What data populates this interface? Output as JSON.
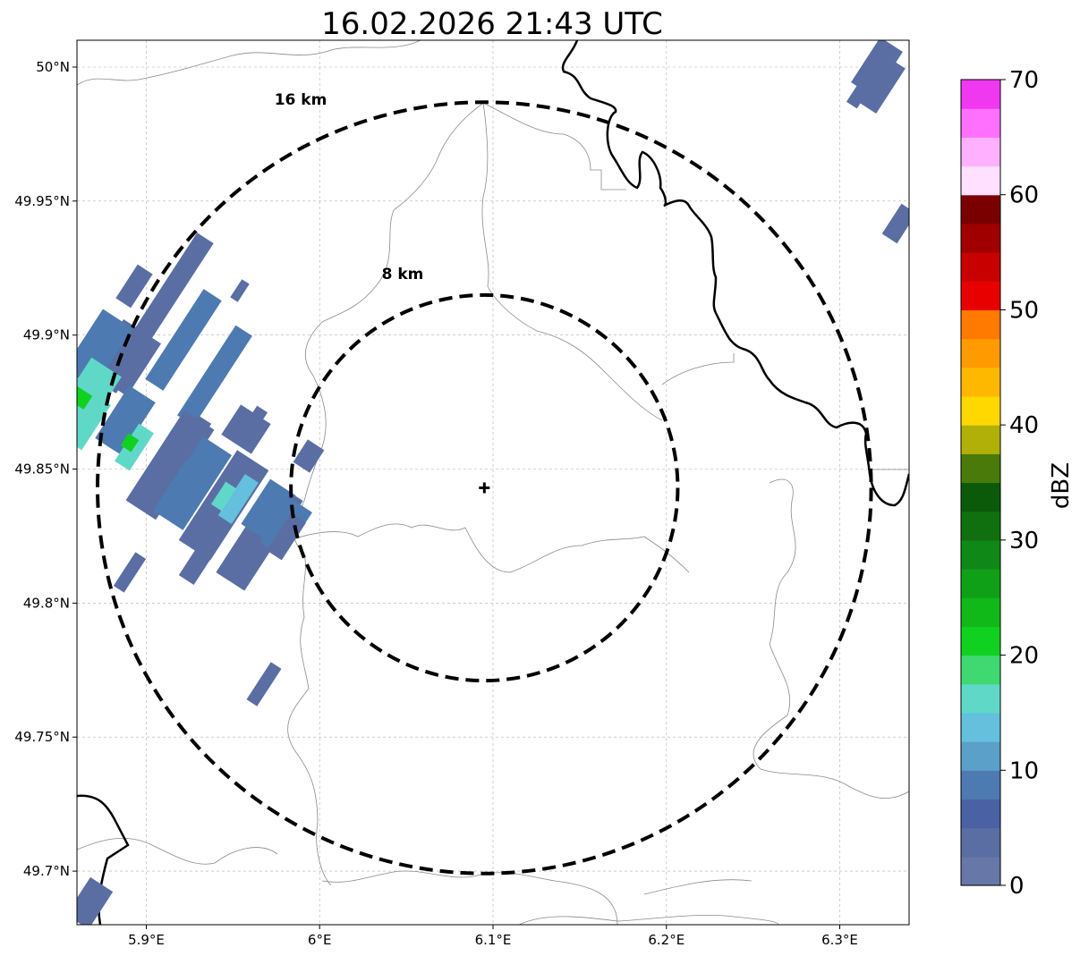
{
  "title": "16.02.2026 21:43 UTC",
  "map": {
    "x_ticks": [
      "5.9°E",
      "6°E",
      "6.1°E",
      "6.2°E",
      "6.3°E"
    ],
    "y_ticks": [
      "50°N",
      "49.95°N",
      "49.9°N",
      "49.85°N",
      "49.8°N",
      "49.75°N",
      "49.7°N"
    ],
    "x_tick_values": [
      5.9,
      6.0,
      6.1,
      6.2,
      6.3
    ],
    "y_tick_values": [
      50.0,
      49.95,
      49.9,
      49.85,
      49.8,
      49.75,
      49.7
    ],
    "lon_range": [
      5.86,
      6.34
    ],
    "lat_range": [
      49.68,
      50.01
    ],
    "grid": true,
    "radar_site": {
      "lon": 6.095,
      "lat": 49.843
    },
    "range_rings": [
      {
        "label": "8 km",
        "radius_km": 8
      },
      {
        "label": "16 km",
        "radius_km": 16
      }
    ]
  },
  "colorbar": {
    "label": "dBZ",
    "ticks": [
      "0",
      "10",
      "20",
      "30",
      "40",
      "50",
      "60",
      "70"
    ],
    "min": 0,
    "max": 70,
    "step": 2.5,
    "colors": [
      "#6677a8",
      "#5a6ea4",
      "#4a62a3",
      "#4d7ab0",
      "#5aa0c8",
      "#64c0dc",
      "#60d8c8",
      "#40d870",
      "#10d020",
      "#10b818",
      "#10a018",
      "#108818",
      "#107010",
      "#0a5a0a",
      "#4a7a0a",
      "#b0b008",
      "#ffd800",
      "#ffb800",
      "#ff9a00",
      "#ff7a00",
      "#e80000",
      "#c80000",
      "#a00000",
      "#7a0000",
      "#ffe0ff",
      "#ffb0ff",
      "#ff70ff",
      "#f038f0"
    ]
  },
  "colors": {
    "echo_weak": "#5a6ea4",
    "echo_mid": "#4d7ab0",
    "echo_light": "#64c0dc",
    "echo_cyan": "#60d8c8",
    "echo_green": "#10d020",
    "border": "#000000",
    "admin": "#8a8a8a",
    "grid": "#b0b0b0"
  }
}
